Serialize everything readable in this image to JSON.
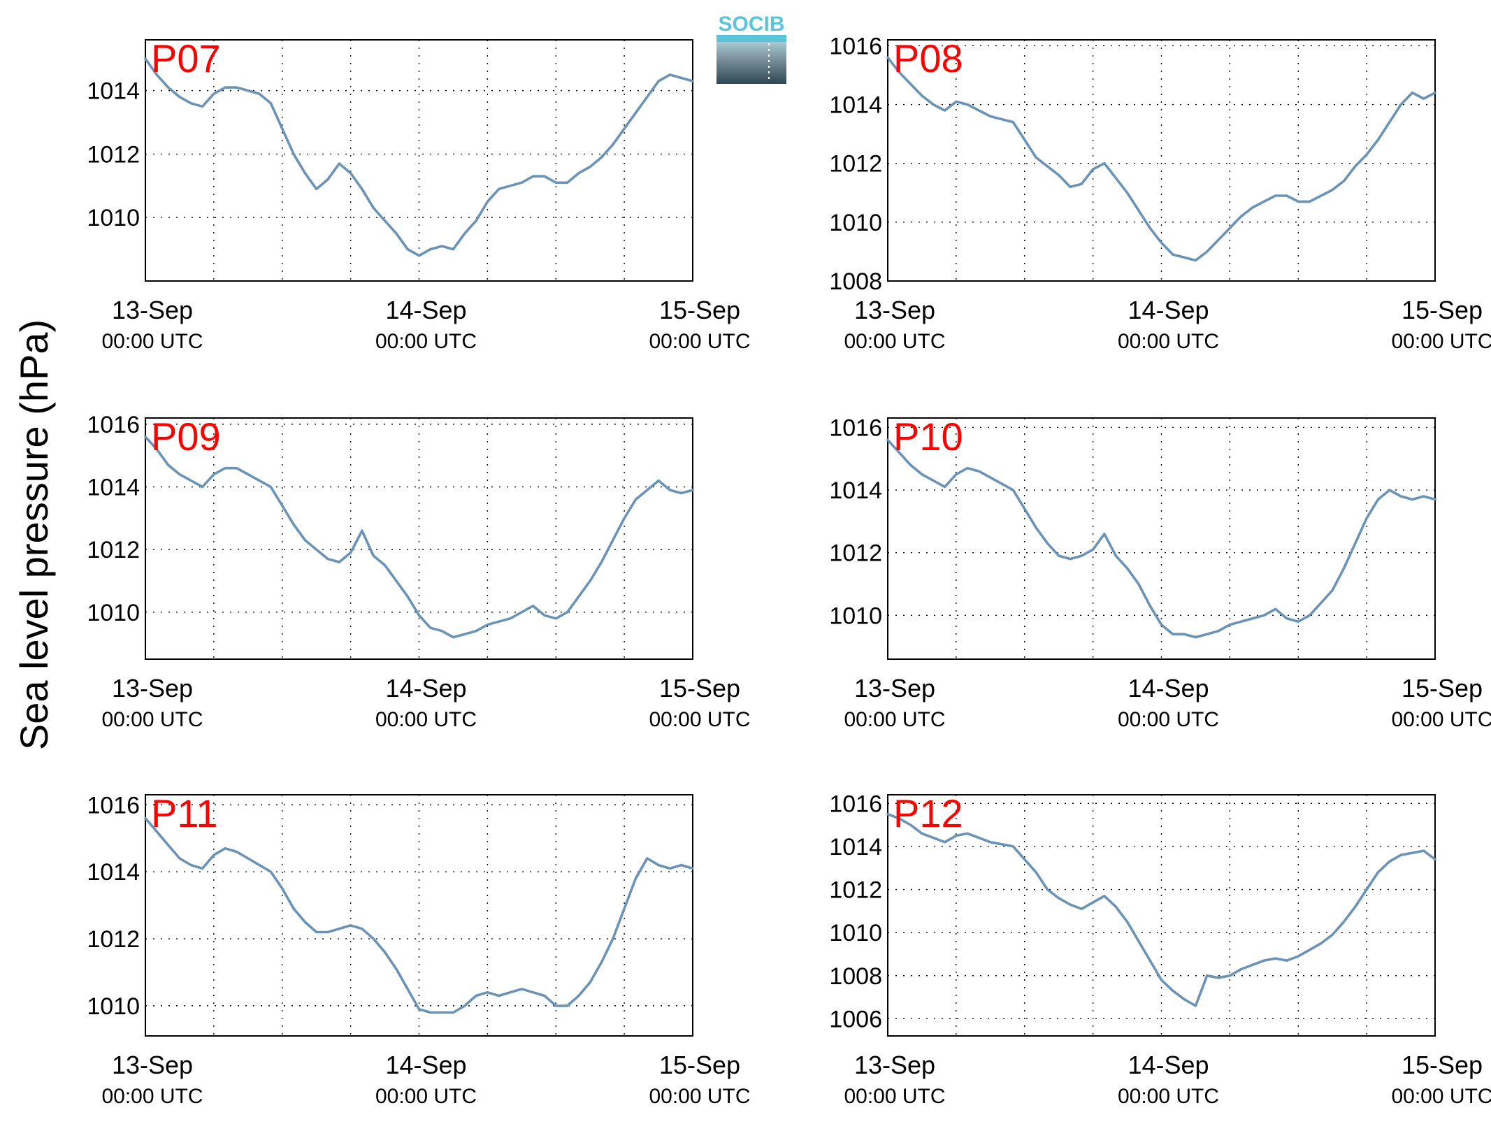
{
  "figure": {
    "ylabel": "Sea level pressure (hPa)",
    "line_color": "#6a93b6",
    "panel_label_color": "#ff0000",
    "logo_text": "SOCIB",
    "logo_text_color": "#5cc4d8"
  },
  "chart_data": [
    {
      "type": "line",
      "title": "P07",
      "x_ticks": [
        "13-Sep 00:00 UTC",
        "14-Sep 00:00 UTC",
        "15-Sep 00:00 UTC"
      ],
      "x_tick_dates": [
        "13-Sep",
        "14-Sep",
        "15-Sep"
      ],
      "x_tick_times": [
        "00:00 UTC",
        "00:00 UTC",
        "00:00 UTC"
      ],
      "xlim_hours": [
        0,
        48
      ],
      "ylim": [
        1008,
        1015.6
      ],
      "yticks": [
        1010,
        1012,
        1014
      ],
      "grid": true,
      "series": [
        {
          "x_hours": [
            0,
            1,
            2,
            3,
            4,
            5,
            6,
            7,
            8,
            9,
            10,
            11,
            12,
            13,
            14,
            15,
            16,
            17,
            18,
            19,
            20,
            21,
            22,
            23,
            24,
            25,
            26,
            27,
            28,
            29,
            30,
            31,
            32,
            33,
            34,
            35,
            36,
            37,
            38,
            39,
            40,
            41,
            42,
            43,
            44,
            45,
            46,
            47,
            48
          ],
          "values": [
            1015.0,
            1014.5,
            1014.1,
            1013.8,
            1013.6,
            1013.5,
            1013.9,
            1014.1,
            1014.1,
            1014.0,
            1013.9,
            1013.6,
            1012.8,
            1012.0,
            1011.4,
            1010.9,
            1011.2,
            1011.7,
            1011.4,
            1010.9,
            1010.3,
            1009.9,
            1009.5,
            1009.0,
            1008.8,
            1009.0,
            1009.1,
            1009.0,
            1009.5,
            1009.9,
            1010.5,
            1010.9,
            1011.0,
            1011.1,
            1011.3,
            1011.3,
            1011.1,
            1011.1,
            1011.4,
            1011.6,
            1011.9,
            1012.3,
            1012.8,
            1013.3,
            1013.8,
            1014.3,
            1014.5,
            1014.4,
            1014.3
          ]
        }
      ]
    },
    {
      "type": "line",
      "title": "P08",
      "x_ticks": [
        "13-Sep 00:00 UTC",
        "14-Sep 00:00 UTC",
        "15-Sep 00:00 UTC"
      ],
      "x_tick_dates": [
        "13-Sep",
        "14-Sep",
        "15-Sep"
      ],
      "x_tick_times": [
        "00:00 UTC",
        "00:00 UTC",
        "00:00 UTC"
      ],
      "xlim_hours": [
        0,
        48
      ],
      "ylim": [
        1008,
        1016.2
      ],
      "yticks": [
        1008,
        1010,
        1012,
        1014,
        1016
      ],
      "grid": true,
      "series": [
        {
          "x_hours": [
            0,
            1,
            2,
            3,
            4,
            5,
            6,
            7,
            8,
            9,
            10,
            11,
            12,
            13,
            14,
            15,
            16,
            17,
            18,
            19,
            20,
            21,
            22,
            23,
            24,
            25,
            26,
            27,
            28,
            29,
            30,
            31,
            32,
            33,
            34,
            35,
            36,
            37,
            38,
            39,
            40,
            41,
            42,
            43,
            44,
            45,
            46,
            47,
            48
          ],
          "values": [
            1015.6,
            1015.1,
            1014.7,
            1014.3,
            1014.0,
            1013.8,
            1014.1,
            1014.0,
            1013.8,
            1013.6,
            1013.5,
            1013.4,
            1012.8,
            1012.2,
            1011.9,
            1011.6,
            1011.2,
            1011.3,
            1011.8,
            1012.0,
            1011.5,
            1011.0,
            1010.4,
            1009.8,
            1009.3,
            1008.9,
            1008.8,
            1008.7,
            1009.0,
            1009.4,
            1009.8,
            1010.2,
            1010.5,
            1010.7,
            1010.9,
            1010.9,
            1010.7,
            1010.7,
            1010.9,
            1011.1,
            1011.4,
            1011.9,
            1012.3,
            1012.8,
            1013.4,
            1014.0,
            1014.4,
            1014.2,
            1014.4
          ]
        }
      ]
    },
    {
      "type": "line",
      "title": "P09",
      "x_ticks": [
        "13-Sep 00:00 UTC",
        "14-Sep 00:00 UTC",
        "15-Sep 00:00 UTC"
      ],
      "x_tick_dates": [
        "13-Sep",
        "14-Sep",
        "15-Sep"
      ],
      "x_tick_times": [
        "00:00 UTC",
        "00:00 UTC",
        "00:00 UTC"
      ],
      "xlim_hours": [
        0,
        48
      ],
      "ylim": [
        1008.5,
        1016.2
      ],
      "yticks": [
        1010,
        1012,
        1014,
        1016
      ],
      "grid": true,
      "series": [
        {
          "x_hours": [
            0,
            1,
            2,
            3,
            4,
            5,
            6,
            7,
            8,
            9,
            10,
            11,
            12,
            13,
            14,
            15,
            16,
            17,
            18,
            19,
            20,
            21,
            22,
            23,
            24,
            25,
            26,
            27,
            28,
            29,
            30,
            31,
            32,
            33,
            34,
            35,
            36,
            37,
            38,
            39,
            40,
            41,
            42,
            43,
            44,
            45,
            46,
            47,
            48
          ],
          "values": [
            1015.6,
            1015.2,
            1014.7,
            1014.4,
            1014.2,
            1014.0,
            1014.4,
            1014.6,
            1014.6,
            1014.4,
            1014.2,
            1014.0,
            1013.4,
            1012.8,
            1012.3,
            1012.0,
            1011.7,
            1011.6,
            1011.9,
            1012.6,
            1011.8,
            1011.5,
            1011.0,
            1010.5,
            1009.9,
            1009.5,
            1009.4,
            1009.2,
            1009.3,
            1009.4,
            1009.6,
            1009.7,
            1009.8,
            1010.0,
            1010.2,
            1009.9,
            1009.8,
            1010.0,
            1010.5,
            1011.0,
            1011.6,
            1012.3,
            1013.0,
            1013.6,
            1013.9,
            1014.2,
            1013.9,
            1013.8,
            1013.9
          ]
        }
      ]
    },
    {
      "type": "line",
      "title": "P10",
      "x_ticks": [
        "13-Sep 00:00 UTC",
        "14-Sep 00:00 UTC",
        "15-Sep 00:00 UTC"
      ],
      "x_tick_dates": [
        "13-Sep",
        "14-Sep",
        "15-Sep"
      ],
      "x_tick_times": [
        "00:00 UTC",
        "00:00 UTC",
        "00:00 UTC"
      ],
      "xlim_hours": [
        0,
        48
      ],
      "ylim": [
        1008.6,
        1016.3
      ],
      "yticks": [
        1010,
        1012,
        1014,
        1016
      ],
      "grid": true,
      "series": [
        {
          "x_hours": [
            0,
            1,
            2,
            3,
            4,
            5,
            6,
            7,
            8,
            9,
            10,
            11,
            12,
            13,
            14,
            15,
            16,
            17,
            18,
            19,
            20,
            21,
            22,
            23,
            24,
            25,
            26,
            27,
            28,
            29,
            30,
            31,
            32,
            33,
            34,
            35,
            36,
            37,
            38,
            39,
            40,
            41,
            42,
            43,
            44,
            45,
            46,
            47,
            48
          ],
          "values": [
            1015.6,
            1015.2,
            1014.8,
            1014.5,
            1014.3,
            1014.1,
            1014.5,
            1014.7,
            1014.6,
            1014.4,
            1014.2,
            1014.0,
            1013.4,
            1012.8,
            1012.3,
            1011.9,
            1011.8,
            1011.9,
            1012.1,
            1012.6,
            1011.9,
            1011.5,
            1011.0,
            1010.3,
            1009.7,
            1009.4,
            1009.4,
            1009.3,
            1009.4,
            1009.5,
            1009.7,
            1009.8,
            1009.9,
            1010.0,
            1010.2,
            1009.9,
            1009.8,
            1010.0,
            1010.4,
            1010.8,
            1011.5,
            1012.3,
            1013.1,
            1013.7,
            1014.0,
            1013.8,
            1013.7,
            1013.8,
            1013.7
          ]
        }
      ]
    },
    {
      "type": "line",
      "title": "P11",
      "x_ticks": [
        "13-Sep 00:00 UTC",
        "14-Sep 00:00 UTC",
        "15-Sep 00:00 UTC"
      ],
      "x_tick_dates": [
        "13-Sep",
        "14-Sep",
        "15-Sep"
      ],
      "x_tick_times": [
        "00:00 UTC",
        "00:00 UTC",
        "00:00 UTC"
      ],
      "xlim_hours": [
        0,
        48
      ],
      "ylim": [
        1009.1,
        1016.3
      ],
      "yticks": [
        1010,
        1012,
        1014,
        1016
      ],
      "grid": true,
      "series": [
        {
          "x_hours": [
            0,
            1,
            2,
            3,
            4,
            5,
            6,
            7,
            8,
            9,
            10,
            11,
            12,
            13,
            14,
            15,
            16,
            17,
            18,
            19,
            20,
            21,
            22,
            23,
            24,
            25,
            26,
            27,
            28,
            29,
            30,
            31,
            32,
            33,
            34,
            35,
            36,
            37,
            38,
            39,
            40,
            41,
            42,
            43,
            44,
            45,
            46,
            47,
            48
          ],
          "values": [
            1015.6,
            1015.2,
            1014.8,
            1014.4,
            1014.2,
            1014.1,
            1014.5,
            1014.7,
            1014.6,
            1014.4,
            1014.2,
            1014.0,
            1013.5,
            1012.9,
            1012.5,
            1012.2,
            1012.2,
            1012.3,
            1012.4,
            1012.3,
            1012.0,
            1011.6,
            1011.1,
            1010.5,
            1009.9,
            1009.8,
            1009.8,
            1009.8,
            1010.0,
            1010.3,
            1010.4,
            1010.3,
            1010.4,
            1010.5,
            1010.4,
            1010.3,
            1010.0,
            1010.0,
            1010.3,
            1010.7,
            1011.3,
            1012.0,
            1012.9,
            1013.8,
            1014.4,
            1014.2,
            1014.1,
            1014.2,
            1014.1
          ]
        }
      ]
    },
    {
      "type": "line",
      "title": "P12",
      "x_ticks": [
        "13-Sep 00:00 UTC",
        "14-Sep 00:00 UTC",
        "15-Sep 00:00 UTC"
      ],
      "x_tick_dates": [
        "13-Sep",
        "14-Sep",
        "15-Sep"
      ],
      "x_tick_times": [
        "00:00 UTC",
        "00:00 UTC",
        "00:00 UTC"
      ],
      "xlim_hours": [
        0,
        48
      ],
      "ylim": [
        1005.2,
        1016.4
      ],
      "yticks": [
        1006,
        1008,
        1010,
        1012,
        1014,
        1016
      ],
      "grid": true,
      "series": [
        {
          "x_hours": [
            0,
            1,
            2,
            3,
            4,
            5,
            6,
            7,
            8,
            9,
            10,
            11,
            12,
            13,
            14,
            15,
            16,
            17,
            18,
            19,
            20,
            21,
            22,
            23,
            24,
            25,
            26,
            27,
            28,
            29,
            30,
            31,
            32,
            33,
            34,
            35,
            36,
            37,
            38,
            39,
            40,
            41,
            42,
            43,
            44,
            45,
            46,
            47,
            48
          ],
          "values": [
            1015.5,
            1015.3,
            1015.0,
            1014.6,
            1014.4,
            1014.2,
            1014.5,
            1014.6,
            1014.4,
            1014.2,
            1014.1,
            1014.0,
            1013.4,
            1012.8,
            1012.0,
            1011.6,
            1011.3,
            1011.1,
            1011.4,
            1011.7,
            1011.2,
            1010.5,
            1009.6,
            1008.7,
            1007.8,
            1007.3,
            1006.9,
            1006.6,
            1008.0,
            1007.9,
            1008.0,
            1008.3,
            1008.5,
            1008.7,
            1008.8,
            1008.7,
            1008.9,
            1009.2,
            1009.5,
            1009.9,
            1010.5,
            1011.2,
            1012.0,
            1012.8,
            1013.3,
            1013.6,
            1013.7,
            1013.8,
            1013.4
          ]
        }
      ]
    }
  ]
}
